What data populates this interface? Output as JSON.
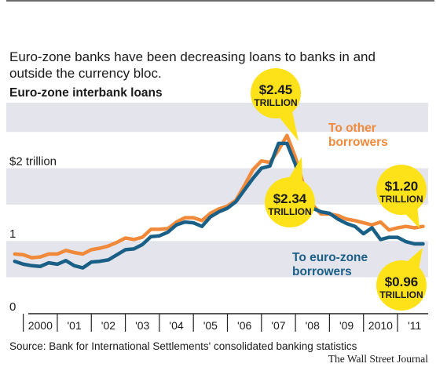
{
  "subtitle": "Euro-zone banks have been decreasing loans to banks in and outside the currency bloc.",
  "source": "Source: Bank for International Settlements' consolidated banking statistics",
  "credit": "The Wall Street Journal",
  "colors": {
    "other": "#f08a3a",
    "eurozone": "#1a5f86",
    "band": "#e4e4ec",
    "callout": "#fde21a"
  },
  "chart_data": {
    "type": "line",
    "title": "Euro-zone interbank loans",
    "y_unit_label": "$2 trillion",
    "y_ticks": [
      0,
      1,
      2
    ],
    "y_tick_labels": [
      "0",
      "1",
      "$2 trillion"
    ],
    "ylim": [
      0,
      2.9
    ],
    "xlim": [
      1999.5,
      2011.9
    ],
    "x_tick_labels": [
      "2000",
      "'01",
      "'02",
      "'03",
      "'04",
      "'05",
      "'06",
      "'07",
      "'08",
      "'09",
      "2010",
      "'11"
    ],
    "x_tick_years": [
      2000,
      2001,
      2002,
      2003,
      2004,
      2005,
      2006,
      2007,
      2008,
      2009,
      2010,
      2011
    ],
    "series": [
      {
        "name": "To other borrowers",
        "color": "#f08a3a",
        "x": [
          1999.75,
          2000.0,
          2000.25,
          2000.5,
          2000.75,
          2001.0,
          2001.25,
          2001.5,
          2001.75,
          2002.0,
          2002.25,
          2002.5,
          2002.75,
          2003.0,
          2003.25,
          2003.5,
          2003.75,
          2004.0,
          2004.25,
          2004.5,
          2004.75,
          2005.0,
          2005.25,
          2005.5,
          2005.75,
          2006.0,
          2006.25,
          2006.5,
          2006.75,
          2007.0,
          2007.25,
          2007.5,
          2007.75,
          2008.0,
          2008.25,
          2008.5,
          2008.75,
          2009.0,
          2009.25,
          2009.5,
          2009.75,
          2010.0,
          2010.25,
          2010.5,
          2010.75,
          2011.0,
          2011.25,
          2011.5,
          2011.75
        ],
        "values": [
          0.82,
          0.81,
          0.77,
          0.78,
          0.82,
          0.82,
          0.87,
          0.84,
          0.82,
          0.88,
          0.9,
          0.93,
          0.98,
          1.04,
          1.02,
          1.05,
          1.16,
          1.16,
          1.17,
          1.26,
          1.32,
          1.32,
          1.28,
          1.38,
          1.44,
          1.48,
          1.56,
          1.76,
          1.98,
          2.1,
          2.08,
          2.25,
          2.45,
          2.15,
          1.75,
          1.5,
          1.37,
          1.37,
          1.35,
          1.3,
          1.28,
          1.25,
          1.22,
          1.26,
          1.15,
          1.18,
          1.2,
          1.18,
          1.2
        ]
      },
      {
        "name": "To euro-zone borrowers",
        "color": "#1a5f86",
        "x": [
          1999.75,
          2000.0,
          2000.25,
          2000.5,
          2000.75,
          2001.0,
          2001.25,
          2001.5,
          2001.75,
          2002.0,
          2002.25,
          2002.5,
          2002.75,
          2003.0,
          2003.25,
          2003.5,
          2003.75,
          2004.0,
          2004.25,
          2004.5,
          2004.75,
          2005.0,
          2005.25,
          2005.5,
          2005.75,
          2006.0,
          2006.25,
          2006.5,
          2006.75,
          2007.0,
          2007.25,
          2007.5,
          2007.75,
          2008.0,
          2008.25,
          2008.5,
          2008.75,
          2009.0,
          2009.25,
          2009.5,
          2009.75,
          2010.0,
          2010.25,
          2010.5,
          2010.75,
          2011.0,
          2011.25,
          2011.5,
          2011.75
        ],
        "values": [
          0.72,
          0.68,
          0.66,
          0.65,
          0.7,
          0.68,
          0.73,
          0.66,
          0.63,
          0.71,
          0.72,
          0.74,
          0.81,
          0.88,
          0.89,
          0.95,
          1.06,
          1.07,
          1.12,
          1.22,
          1.26,
          1.25,
          1.2,
          1.33,
          1.4,
          1.45,
          1.54,
          1.7,
          1.86,
          2.0,
          2.03,
          2.34,
          2.34,
          2.05,
          1.66,
          1.45,
          1.4,
          1.38,
          1.3,
          1.24,
          1.2,
          1.1,
          1.18,
          1.02,
          1.05,
          1.05,
          0.99,
          0.96,
          0.96
        ]
      }
    ],
    "annotations": [
      {
        "id": "peak-other",
        "line1": "$2.45",
        "line2": "TRILLION"
      },
      {
        "id": "peak-eurozone",
        "line1": "$2.34",
        "line2": "TRILLION"
      },
      {
        "id": "end-other",
        "line1": "$1.20",
        "line2": "TRILLION"
      },
      {
        "id": "end-eurozone",
        "line1": "$0.96",
        "line2": "TRILLION"
      }
    ],
    "series_labels": [
      {
        "id": "other",
        "line1": "To other",
        "line2": "borrowers"
      },
      {
        "id": "eurozone",
        "line1": "To euro-zone",
        "line2": "borrowers"
      }
    ],
    "grid": "alternating horizontal bands"
  }
}
